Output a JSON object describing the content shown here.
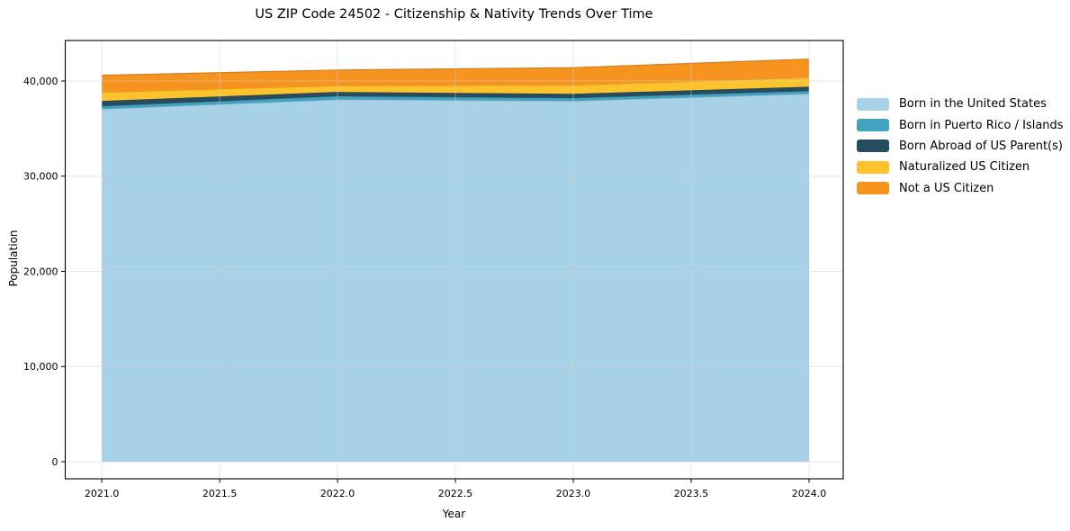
{
  "chart_data": {
    "type": "area",
    "stacked": true,
    "title": "US ZIP Code 24502 - Citizenship & Nativity Trends Over Time",
    "xlabel": "Year",
    "ylabel": "Population",
    "x": [
      2021,
      2022,
      2023,
      2024
    ],
    "series": [
      {
        "name": "Born in the United States",
        "color": "#a6d1e6",
        "values": [
          37050,
          38050,
          37900,
          38650
        ]
      },
      {
        "name": "Born in Puerto Rico / Islands",
        "color": "#42a2c0",
        "values": [
          300,
          350,
          300,
          300
        ]
      },
      {
        "name": "Born Abroad of US Parent(s)",
        "color": "#264c5f",
        "values": [
          550,
          450,
          450,
          450
        ]
      },
      {
        "name": "Naturalized US Citizen",
        "color": "#fcc32d",
        "values": [
          900,
          650,
          900,
          950
        ]
      },
      {
        "name": "Not a US Citizen",
        "color": "#f7941f",
        "values": [
          1800,
          1650,
          1850,
          1950
        ]
      }
    ],
    "xticks": {
      "values": [
        2021.0,
        2021.5,
        2022.0,
        2022.5,
        2023.0,
        2023.5,
        2024.0
      ],
      "labels": [
        "2021.0",
        "2021.5",
        "2022.0",
        "2022.5",
        "2023.0",
        "2023.5",
        "2024.0"
      ]
    },
    "yticks": {
      "values": [
        0,
        10000,
        20000,
        30000,
        40000
      ],
      "labels": [
        "0",
        "10,000",
        "20,000",
        "30,000",
        "40,000"
      ]
    },
    "xlim": [
      2020.845,
      2024.145
    ],
    "ylim": [
      -1797,
      44254
    ],
    "grid": true,
    "legend_position": "outside-right"
  },
  "style": {
    "background": "#ffffff",
    "spine_color": "#000000",
    "grid_color": "rgba(210,210,210,0.55)",
    "tick_color": "#000000",
    "text_color": "#000000"
  }
}
